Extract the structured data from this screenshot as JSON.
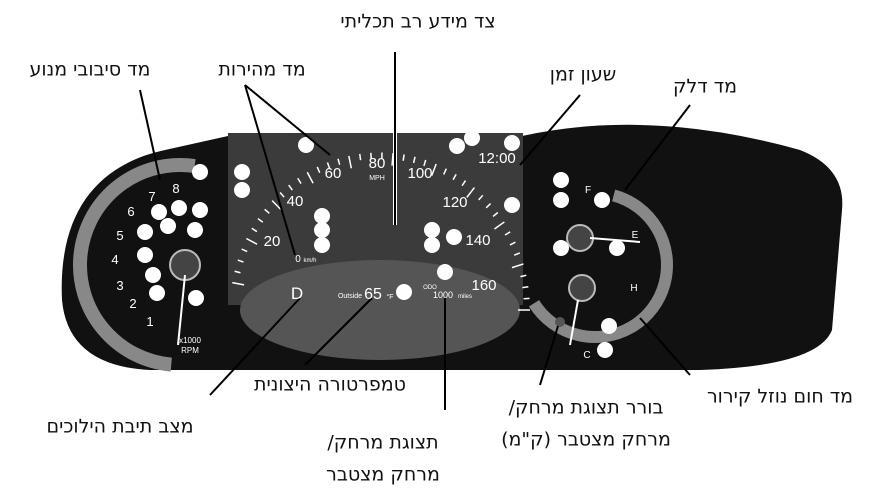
{
  "callouts": [
    {
      "lines": [
        "צד מידע רב תכליתי"
      ]
    },
    {
      "lines": [
        "מד סיבובי מנוע"
      ]
    },
    {
      "lines": [
        "מד מהירות"
      ]
    },
    {
      "lines": [
        "שעון זמן"
      ]
    },
    {
      "lines": [
        "מד דלק"
      ]
    },
    {
      "lines": [
        "מד חום נוזל קירור"
      ]
    },
    {
      "lines": [
        "בורר תצוגת מרחק/",
        "מרחק מצטבר (ק\"מ)"
      ]
    },
    {
      "lines": [
        "תצוגת מרחק/",
        "מרחק מצטבר"
      ]
    },
    {
      "lines": [
        "טמפרטורה היצונית"
      ]
    },
    {
      "lines": [
        "מצב תיבת הילוכים"
      ]
    }
  ],
  "speedometer": {
    "numbers": [
      "0",
      "20",
      "40",
      "60",
      "80",
      "100",
      "120",
      "140",
      "160"
    ],
    "unit": "MPH",
    "zero_unit": "km/h"
  },
  "tachometer": {
    "numbers": [
      "1",
      "2",
      "3",
      "4",
      "5",
      "6",
      "7",
      "8"
    ],
    "multiplier": "x1000",
    "unit": "RPM"
  },
  "clock": "12:00",
  "gear": "D",
  "outside": {
    "label": "Outside",
    "temp": "65",
    "unit": "°F"
  },
  "odometer": {
    "label": "ODO",
    "value": "1000",
    "unit": "miles"
  },
  "fuel": {
    "full": "F",
    "empty": "E"
  },
  "coolant": {
    "hot": "H",
    "cold": "C"
  }
}
